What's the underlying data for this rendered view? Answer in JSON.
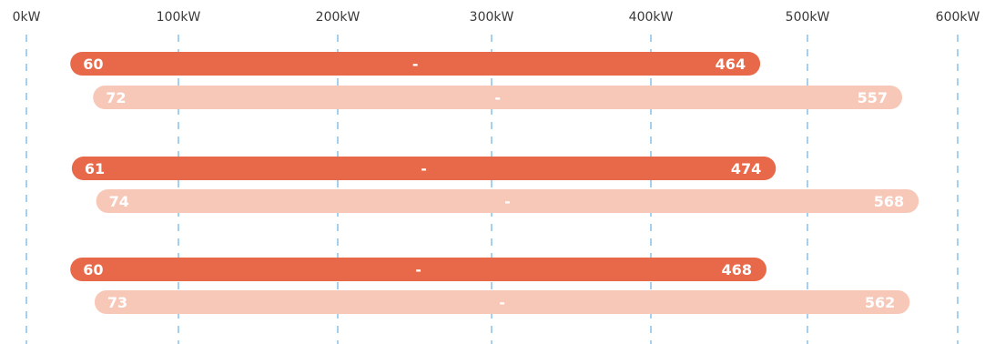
{
  "chart_data": {
    "type": "bar",
    "orientation": "horizontal-range",
    "x_axis": {
      "ticks": [
        0,
        100,
        200,
        300,
        400,
        500,
        600
      ],
      "tick_labels": [
        "0kW",
        "100kW",
        "200kW",
        "300kW",
        "400kW",
        "500kW",
        "600kW"
      ],
      "range": [
        0,
        600
      ],
      "unit": "kW",
      "position": "top"
    },
    "grid": true,
    "series": [
      {
        "color": "#E8694A",
        "text_color": "#FFFFFF"
      },
      {
        "color": "#F7C8B8",
        "text_color": "#FFFFFF"
      }
    ],
    "groups": [
      {
        "ranges": [
          {
            "series": 0,
            "start": 60,
            "end": 464,
            "start_label": "60",
            "separator": "-",
            "end_label": "464"
          },
          {
            "series": 1,
            "start": 72,
            "end": 557,
            "start_label": "72",
            "separator": "-",
            "end_label": "557"
          }
        ]
      },
      {
        "ranges": [
          {
            "series": 0,
            "start": 61,
            "end": 474,
            "start_label": "61",
            "separator": "-",
            "end_label": "474"
          },
          {
            "series": 1,
            "start": 74,
            "end": 568,
            "start_label": "74",
            "separator": "-",
            "end_label": "568"
          }
        ]
      },
      {
        "ranges": [
          {
            "series": 0,
            "start": 60,
            "end": 468,
            "start_label": "60",
            "separator": "-",
            "end_label": "468"
          },
          {
            "series": 1,
            "start": 73,
            "end": 562,
            "start_label": "73",
            "separator": "-",
            "end_label": "562"
          }
        ]
      }
    ]
  }
}
